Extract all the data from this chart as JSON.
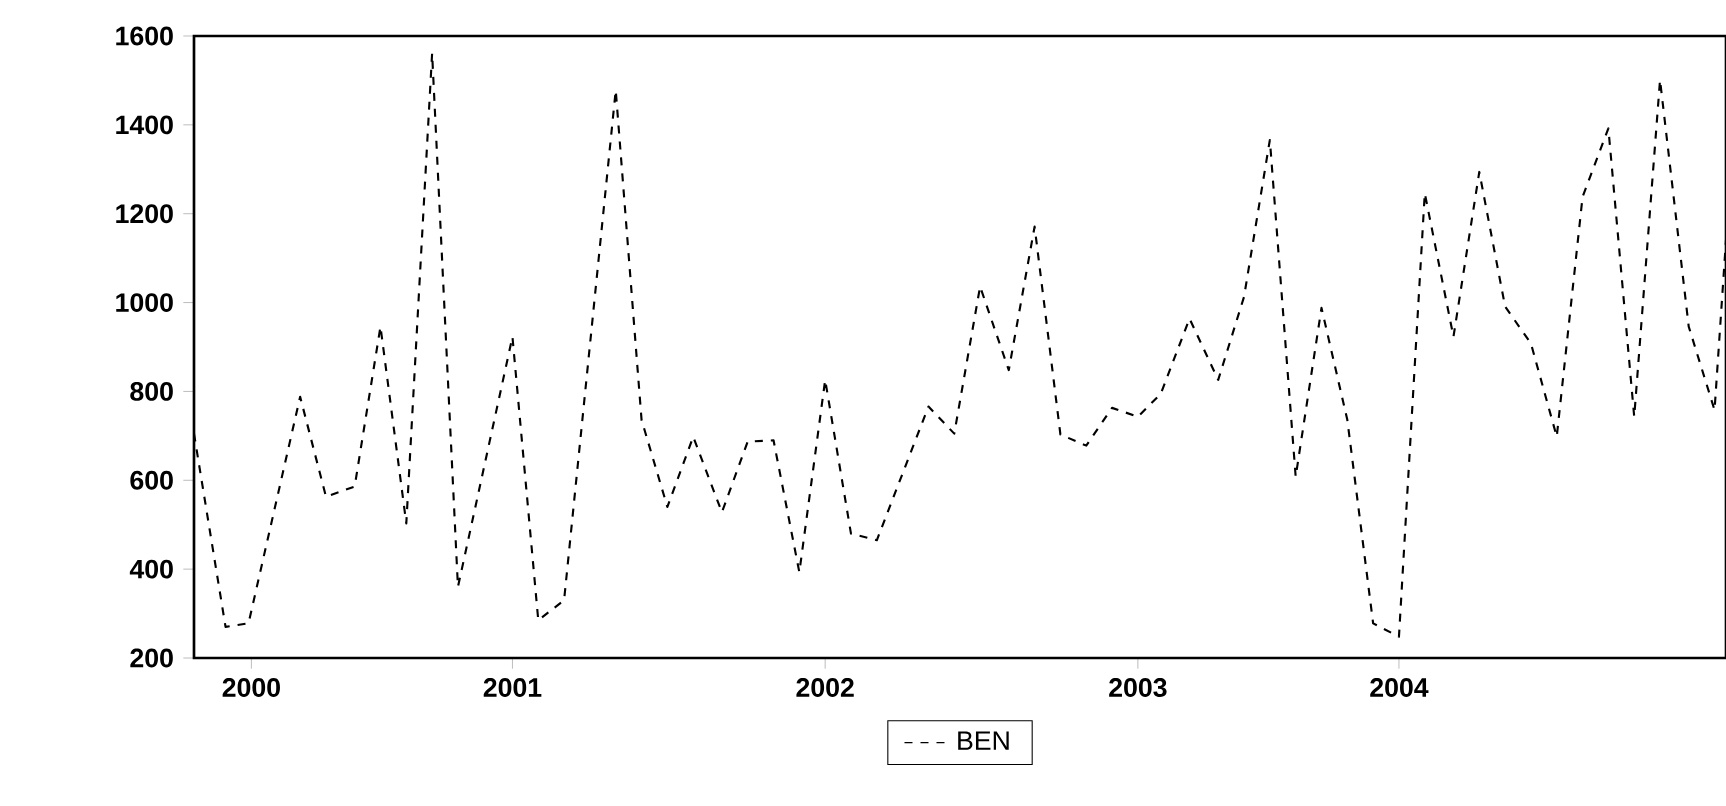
{
  "chart_data": {
    "type": "line",
    "xlim": [
      1999.8,
      2005.14
    ],
    "ylim": [
      200,
      1600
    ],
    "xticks": [
      {
        "value": 2000,
        "label": "2000"
      },
      {
        "value": 2000.91,
        "label": "2001"
      },
      {
        "value": 2002.0,
        "label": "2002"
      },
      {
        "value": 2003.09,
        "label": "2003"
      },
      {
        "value": 2004.0,
        "label": "2004"
      }
    ],
    "yticks": [
      200,
      400,
      600,
      800,
      1000,
      1200,
      1400,
      1600
    ],
    "x": [
      1999.8,
      1999.91,
      1999.99,
      2000.17,
      2000.26,
      2000.36,
      2000.45,
      2000.54,
      2000.63,
      2000.72,
      2000.91,
      2001.0,
      2001.09,
      2001.27,
      2001.36,
      2001.45,
      2001.54,
      2001.64,
      2001.73,
      2001.82,
      2001.91,
      2002.0,
      2002.09,
      2002.18,
      2002.36,
      2002.45,
      2002.54,
      2002.64,
      2002.73,
      2002.82,
      2002.91,
      2003.0,
      2003.09,
      2003.17,
      2003.27,
      2003.37,
      2003.46,
      2003.55,
      2003.64,
      2003.73,
      2003.82,
      2003.91,
      2004.0,
      2004.09,
      2004.19,
      2004.28,
      2004.37,
      2004.46,
      2004.55,
      2004.64,
      2004.73,
      2004.82,
      2004.91,
      2005.01,
      2005.1,
      2005.14
    ],
    "series": [
      {
        "name": "BEN",
        "color": "#000000",
        "values": [
          705,
          270,
          278,
          788,
          563,
          586,
          946,
          503,
          1561,
          360,
          923,
          285,
          330,
          1478,
          736,
          540,
          698,
          528,
          687,
          690,
          393,
          826,
          480,
          465,
          766,
          705,
          1036,
          848,
          1171,
          703,
          678,
          763,
          743,
          795,
          964,
          826,
          1013,
          1366,
          608,
          988,
          736,
          278,
          248,
          1246,
          923,
          1294,
          991,
          908,
          698,
          1238,
          1392,
          743,
          1501,
          946,
          758,
          1141
        ]
      }
    ],
    "line_style": "dashed",
    "grid": false,
    "legend": "bottom"
  }
}
